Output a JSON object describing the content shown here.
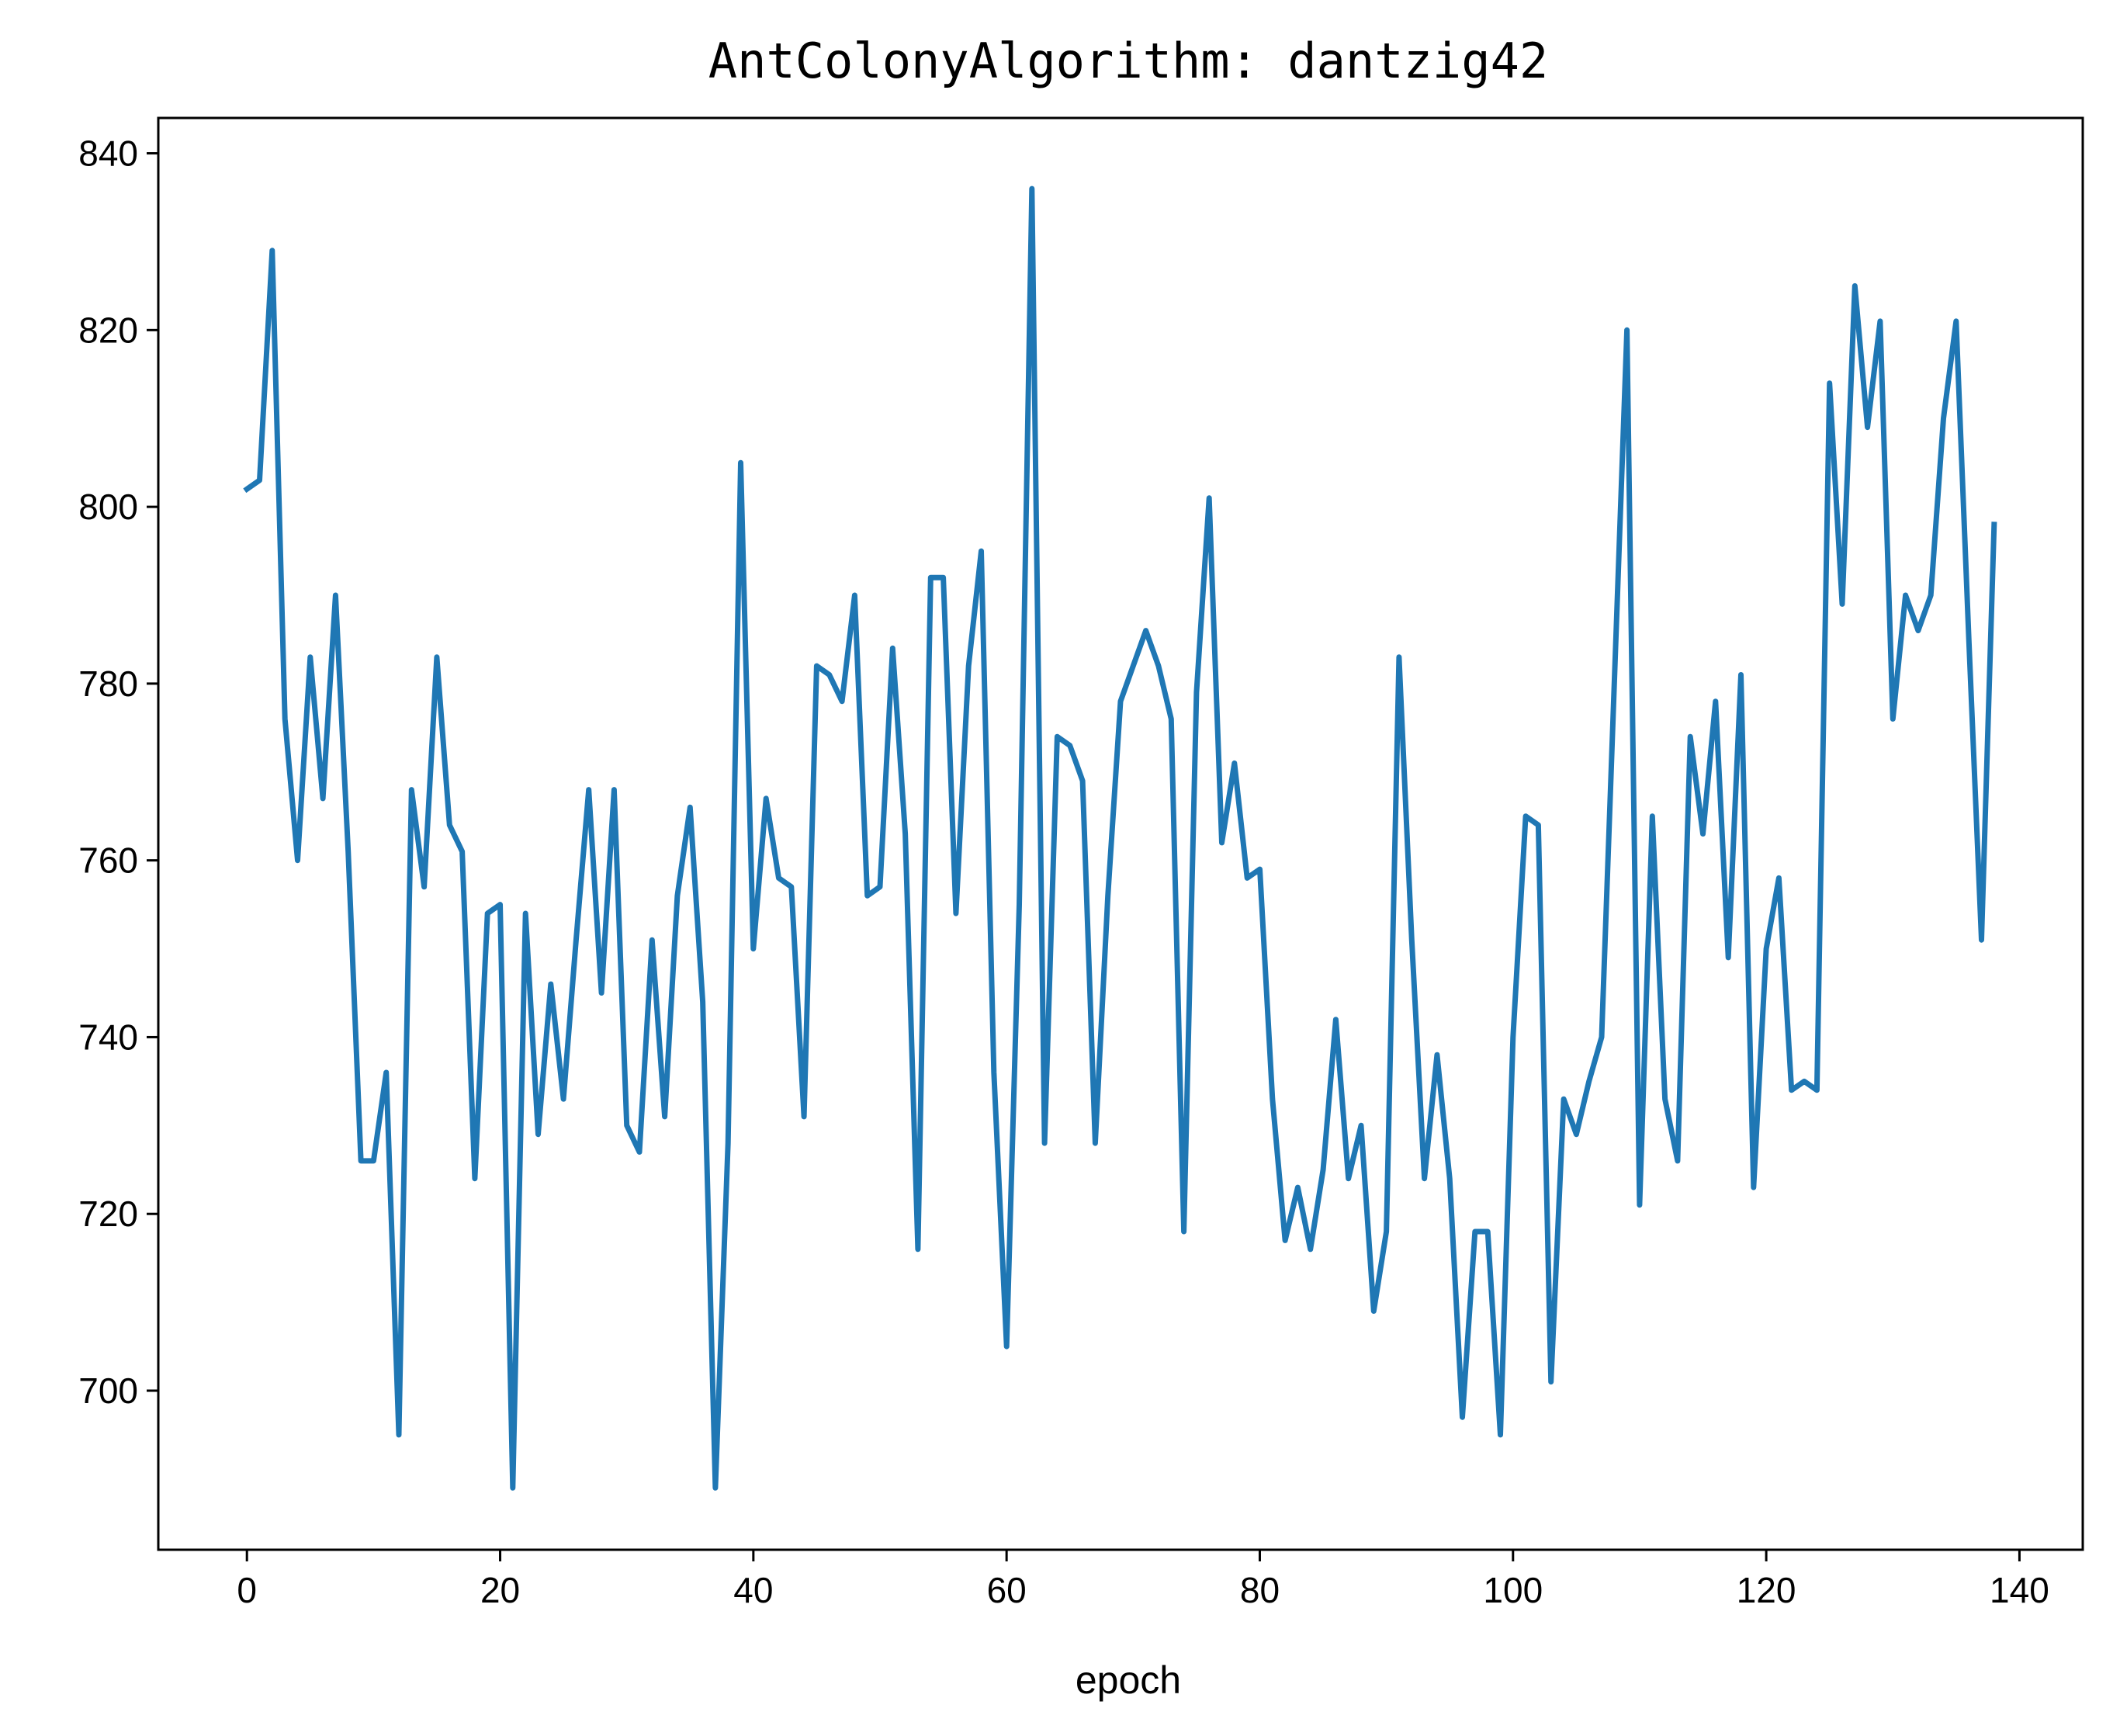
{
  "chart_data": {
    "type": "line",
    "title": "AntColonyAlgorithm: dantzig42",
    "xlabel": "epoch",
    "ylabel": "",
    "xlim": [
      -7,
      145
    ],
    "ylim": [
      682,
      844
    ],
    "x_ticks": [
      0,
      20,
      40,
      60,
      80,
      100,
      120,
      140
    ],
    "y_ticks": [
      700,
      720,
      740,
      760,
      780,
      800,
      820,
      840
    ],
    "grid": false,
    "color": "#1f77b4",
    "series": [
      {
        "values": [
          802,
          803,
          829,
          776,
          760,
          783,
          767,
          790,
          761,
          726,
          726,
          736,
          695,
          768,
          757,
          783,
          764,
          761,
          724,
          754,
          755,
          689,
          754,
          729,
          746,
          733,
          751,
          768,
          745,
          768,
          730,
          727,
          751,
          731,
          756,
          766,
          744,
          689,
          728,
          805,
          750,
          767,
          758,
          757,
          731,
          782,
          781,
          778,
          790,
          756,
          757,
          784,
          763,
          716,
          792,
          792,
          754,
          782,
          795,
          736,
          705,
          755,
          836,
          728,
          774,
          773,
          769,
          728,
          756,
          778,
          782,
          786,
          782,
          776,
          718,
          779,
          801,
          762,
          771,
          758,
          759,
          733,
          717,
          723,
          716,
          725,
          742,
          724,
          730,
          709,
          718,
          783,
          751,
          724,
          738,
          724,
          697,
          718,
          718,
          695,
          740,
          765,
          764,
          701,
          733,
          729,
          735,
          740,
          780,
          820,
          721,
          765,
          733,
          726,
          774,
          763,
          778,
          749,
          781,
          723,
          750,
          758,
          734,
          735,
          734,
          814,
          789,
          825,
          809,
          821,
          776,
          790,
          786,
          790,
          810,
          821,
          785,
          751,
          798
        ]
      }
    ]
  }
}
